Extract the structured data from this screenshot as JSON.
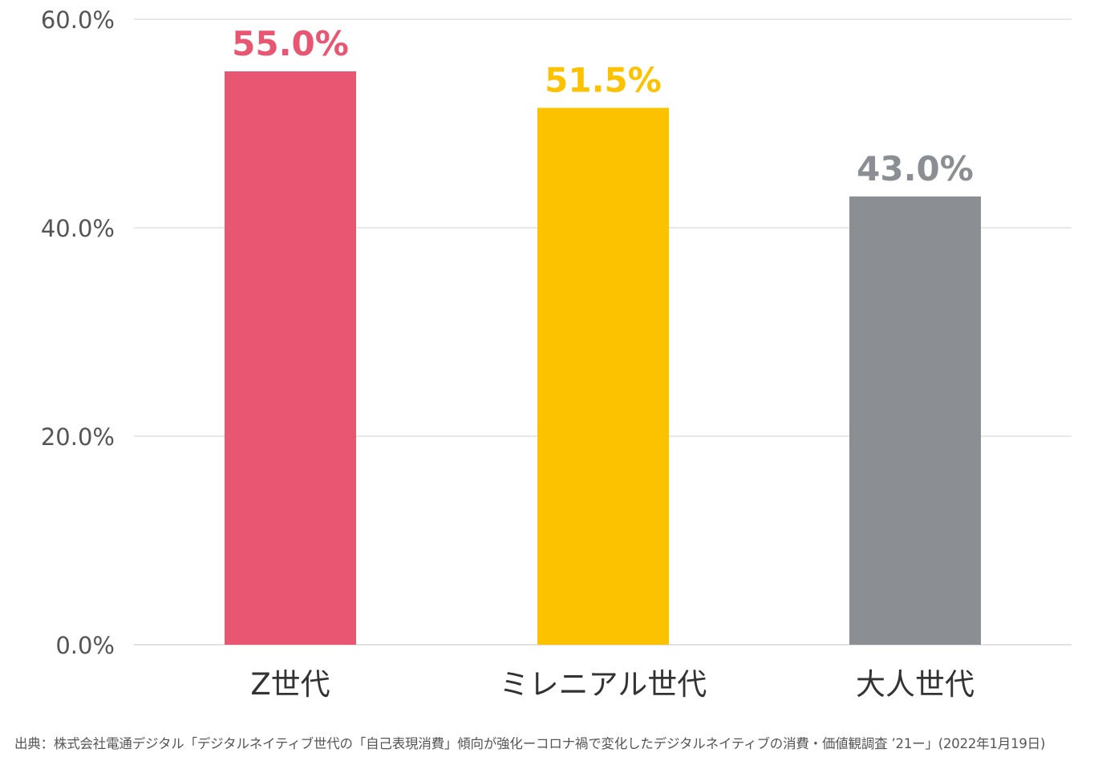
{
  "chart_data": {
    "type": "bar",
    "categories": [
      "Z世代",
      "ミレニアル世代",
      "大人世代"
    ],
    "values": [
      55.0,
      51.5,
      43.0
    ],
    "data_labels": [
      "55.0%",
      "51.5%",
      "43.0%"
    ],
    "colors": [
      "#e85672",
      "#fcc200",
      "#8b8e93"
    ],
    "ylim": [
      0,
      60
    ],
    "yticks": [
      {
        "value": 0,
        "label": "0.0%"
      },
      {
        "value": 20,
        "label": "20.0%"
      },
      {
        "value": 40,
        "label": "40.0%"
      },
      {
        "value": 60,
        "label": "60.0%"
      }
    ],
    "grid": true,
    "legend": "none"
  },
  "source_note": "出典：株式会社電通デジタル「デジタルネイティブ世代の「自己表現消費」傾向が強化ーコロナ禍で変化したデジタルネイティブの消費・価値観調査 ’21ー」(2022年1月19日)"
}
